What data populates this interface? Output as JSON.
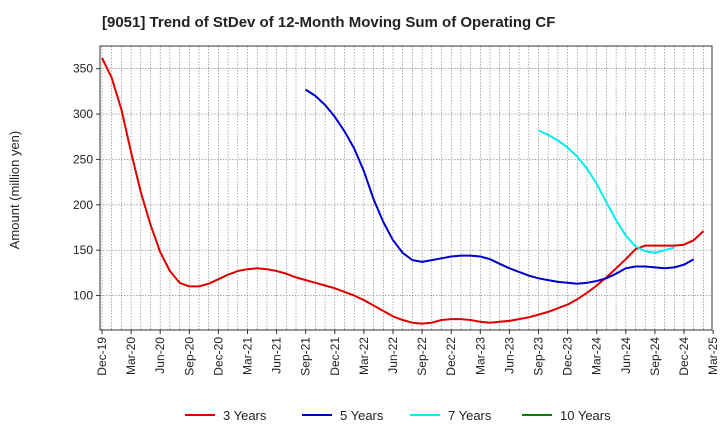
{
  "chart_data": {
    "type": "line",
    "title": "[9051]  Trend of StDev of 12-Month Moving Sum of Operating CF",
    "ylabel": "Amount (million yen)",
    "xlabel": "",
    "ylim": [
      62,
      375
    ],
    "yticks": [
      100,
      150,
      200,
      250,
      300,
      350
    ],
    "x_tick_labels": [
      "Dec-19",
      "Mar-20",
      "Jun-20",
      "Sep-20",
      "Dec-20",
      "Mar-21",
      "Jun-21",
      "Sep-21",
      "Dec-21",
      "Mar-22",
      "Jun-22",
      "Sep-22",
      "Dec-22",
      "Mar-23",
      "Jun-23",
      "Sep-23",
      "Dec-23",
      "Mar-24",
      "Jun-24",
      "Sep-24",
      "Dec-24",
      "Mar-25"
    ],
    "grid": true,
    "legend_position": "bottom",
    "series": [
      {
        "name": "3 Years",
        "color": "#dd0000",
        "start": "Dec-19",
        "values": [
          362,
          340,
          305,
          258,
          214,
          178,
          148,
          127,
          114,
          110,
          110,
          113,
          118,
          123,
          127,
          129,
          130,
          129,
          127,
          124,
          120,
          117,
          114,
          111,
          108,
          104,
          100,
          95,
          89,
          83,
          77,
          73,
          70,
          69,
          70,
          73,
          74,
          74,
          73,
          71,
          70,
          71,
          72,
          74,
          76,
          79,
          82,
          86,
          90,
          96,
          103,
          111,
          120,
          130,
          140,
          151,
          155,
          155,
          155,
          155,
          156,
          161,
          171
        ]
      },
      {
        "name": "5 Years",
        "color": "#0000cc",
        "start": "Sep-21",
        "values": [
          327,
          320,
          310,
          297,
          281,
          262,
          237,
          206,
          181,
          161,
          147,
          139,
          137,
          139,
          141,
          143,
          144,
          144,
          143,
          140,
          135,
          130,
          126,
          122,
          119,
          117,
          115,
          114,
          113,
          114,
          116,
          119,
          124,
          130,
          132,
          132,
          131,
          130,
          131,
          134,
          140
        ]
      },
      {
        "name": "7 Years",
        "color": "#00eeee",
        "start": "Sep-23",
        "values": [
          282,
          277,
          271,
          263,
          253,
          240,
          223,
          203,
          183,
          166,
          154,
          149,
          147,
          150,
          153
        ]
      },
      {
        "name": "10 Years",
        "color": "#008000",
        "start": "",
        "values": []
      }
    ]
  }
}
